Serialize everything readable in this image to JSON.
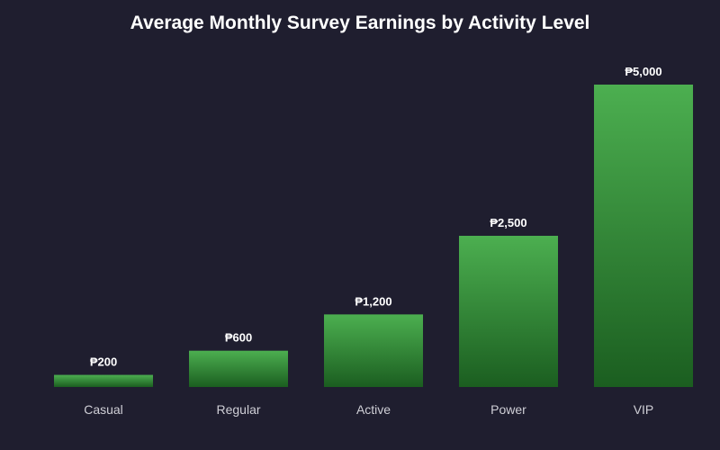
{
  "chart_data": {
    "type": "bar",
    "title": "Average Monthly Survey Earnings by Activity Level",
    "categories": [
      "Casual",
      "Regular",
      "Active",
      "Power",
      "VIP"
    ],
    "values": [
      200,
      600,
      1200,
      2500,
      5000
    ],
    "value_labels": [
      "₱200",
      "₱600",
      "₱1,200",
      "₱2,500",
      "₱5,000"
    ],
    "xlabel": "",
    "ylabel": "",
    "ylim": [
      0,
      5000
    ],
    "grid": false,
    "legend": "none",
    "colors": {
      "background": "#1f1e2f",
      "bar_top": "#4caf50",
      "bar_bottom": "#1b5e20",
      "text": "#ffffff",
      "tick_text": "#cfcfd6"
    }
  }
}
